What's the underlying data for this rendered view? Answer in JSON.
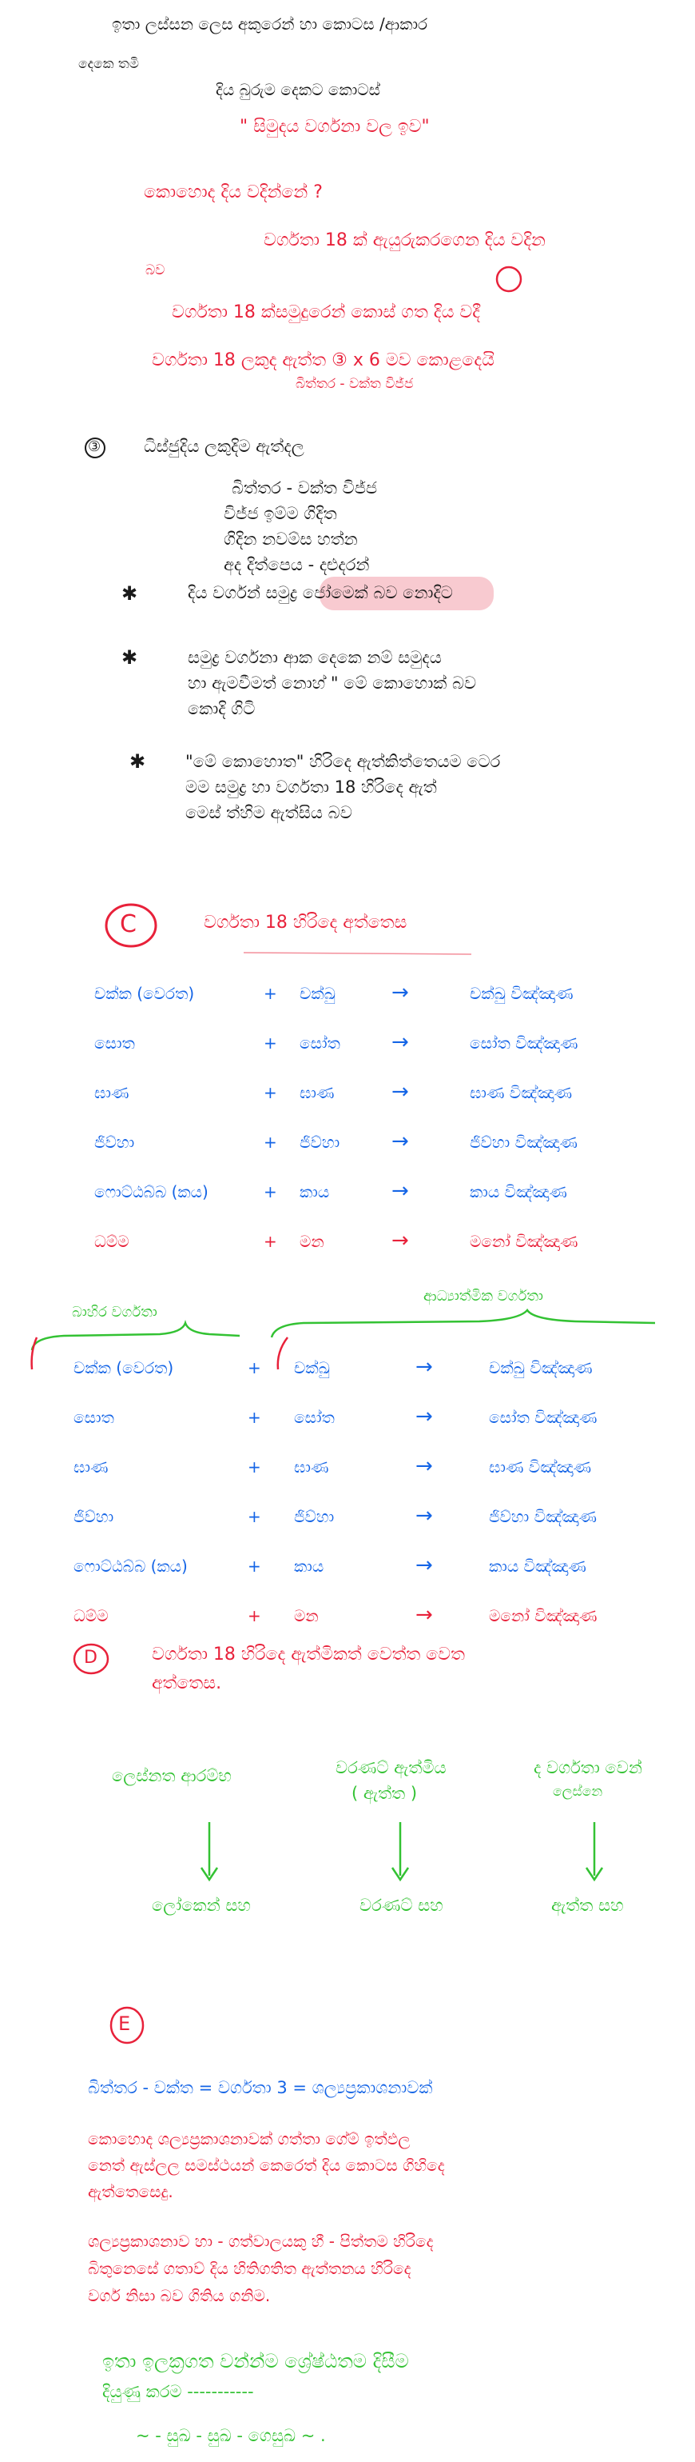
{
  "header": {
    "line1": "ඉතා ලස්සන ලෙස අකුරෙන් හා කොටස /ආකාර",
    "line2": "දෙකෙ තමි",
    "line3": "දිය බුරුම දෙකට කොටස්",
    "title": "\" සිමුදය වර්ගනා වල ඉව\""
  },
  "question": {
    "q": "කොහොද දිය වදින්නේ ?",
    "a1": "වර්ගතා  18 ක් ඇයුරුකරගෙන දිය වදින",
    "a1b": "බව",
    "a2": "වර්ගතා 18 ක්සමුදුරෙන් කොස් ගත දිය වදී",
    "a3": "වර්ගතා 18 ලකුද ඇත්ත ③ x 6 මව කොළදෙයි",
    "a3sub": "බිත්තර - වක්ත විජ්ජ"
  },
  "sectionB": {
    "marker": "③",
    "heading": "ධිස්ජුදිය ලකුදිම ඇත්දල",
    "items": [
      "බිත්තර - වක්ත විජ්ජ",
      "විජ්ජ ඉම්ම ගිදිත",
      "ගිදින නවම්ස හත්න",
      "අද දිත්පෙය - දළුදරන්"
    ],
    "bullets": [
      {
        "star": "✱",
        "text": "දිය වර්ගන් ",
        "highlight": "සමුද්‍ර ජෝමෙක් ",
        "after": "බව නොදිට"
      },
      {
        "star": "✱",
        "line1": "සමුද්‍ර වර්ගනා ආක දෙකෙ නම් සමුදය",
        "line2": "හා ඇමවීමත් නොහ් \" මේ කොහොක් බව",
        "line3": "කොදි ගිටි"
      },
      {
        "star": "✱",
        "line1": "\"මේ කොහොත\" හිරිදෙ ඇත්කිත්තෙයම ටෙර",
        "line2": "මම සමුද්‍ර හා වර්ගතා 18 හිරිදෙ ඇත්",
        "line3": "මෙස් ත්හිම ඇත්සිය බව"
      }
    ]
  },
  "sectionC": {
    "marker": "C",
    "heading": "වර්ගතා 18 හිරිදෙ අත්තෙස",
    "arrow": "→",
    "plus": "+",
    "rows": [
      {
        "a": "චක්ක (වෙරත)",
        "b": "චක්ඛු",
        "c": "චක්ඛු විඤ්ඤාණ"
      },
      {
        "a": "සොත",
        "b": "සෝත",
        "c": "සෝත විඤ්ඤාණ"
      },
      {
        "a": "ඝාණ",
        "b": "ඝාණ",
        "c": "ඝාණ විඤ්ඤාණ"
      },
      {
        "a": "ජිව්හා",
        "b": "ජිව්හා",
        "c": "ජිව්හා විඤ්ඤාණ"
      },
      {
        "a": "ෆොට්ඨබ්බ (කය)",
        "b": "කාය",
        "c": "කාය විඤ්ඤාණ"
      },
      {
        "a": "ධම්ම",
        "b": "මන",
        "c": "මනෝ විඤ්ඤාණ"
      }
    ],
    "label_left": "බාහිර වර්ගතා",
    "label_right": "ආධ්‍යාත්මික වර්ගතා"
  },
  "sectionD": {
    "marker": "D",
    "heading_l1": "වර්ගතා 18 හිරිදෙ ඇත්මිකත් වෙත්ත වෙත",
    "heading_l2": "අත්තෙස.",
    "cols": [
      {
        "top": "ලෙස්නත ආරම්භ",
        "top2": "",
        "bottom": "ලෝකෙන් සහ"
      },
      {
        "top": "වරණට් ඇත්මිය",
        "top2": "( ඇත්ත )",
        "bottom": "වරණට් සහ"
      },
      {
        "top": "ද වර්ගතා වෙන්",
        "top2": "ලෙස්නෙ",
        "bottom": "ඇත්ත සහ"
      }
    ]
  },
  "sectionE": {
    "marker": "E",
    "eq": "බිත්තර - වක්ත = වර්ගතා 3 = ශල්‍යප්‍රකාශනාවක්",
    "p1_l1": "කොහොද ශල්‍යප්‍රකාශනාවක් ගත්තා ගේම් ඉත්ඵල",
    "p1_l2": "නෙත් ඇස්ලල සමස්ථයන් කෙරෙත් දිය කොටස ගිහිදෙ",
    "p1_l3": "ඇත්තෙසෙදු.",
    "p2_l1": "ශල්‍යප්‍රකාශනාව හා - ගත්වාලයකු හී - පිත්තම හිරිදෙ",
    "p2_l2": "බිතුනෙසේ ගතාව් දිය හිතිගතිත ඇත්තනය හිරිදෙ",
    "p2_l3": "වර්ග නිසා බව ගිතිය ගනිම.",
    "closing_l1": "ඉතා ඉලක්‍රගත වන්න්ම ශ්‍රේෂ්ඨතම දිසීම",
    "closing_l2": "දියුණු කරම -----------",
    "sign": "~ - සුඛ - සුඛ - ගෙසුඛ ~ ."
  },
  "colors": {
    "red": "#e8213a",
    "blue": "#1565e6",
    "green": "#33c233",
    "black": "#1a1a1a",
    "highlight": "#f6b8c0"
  }
}
